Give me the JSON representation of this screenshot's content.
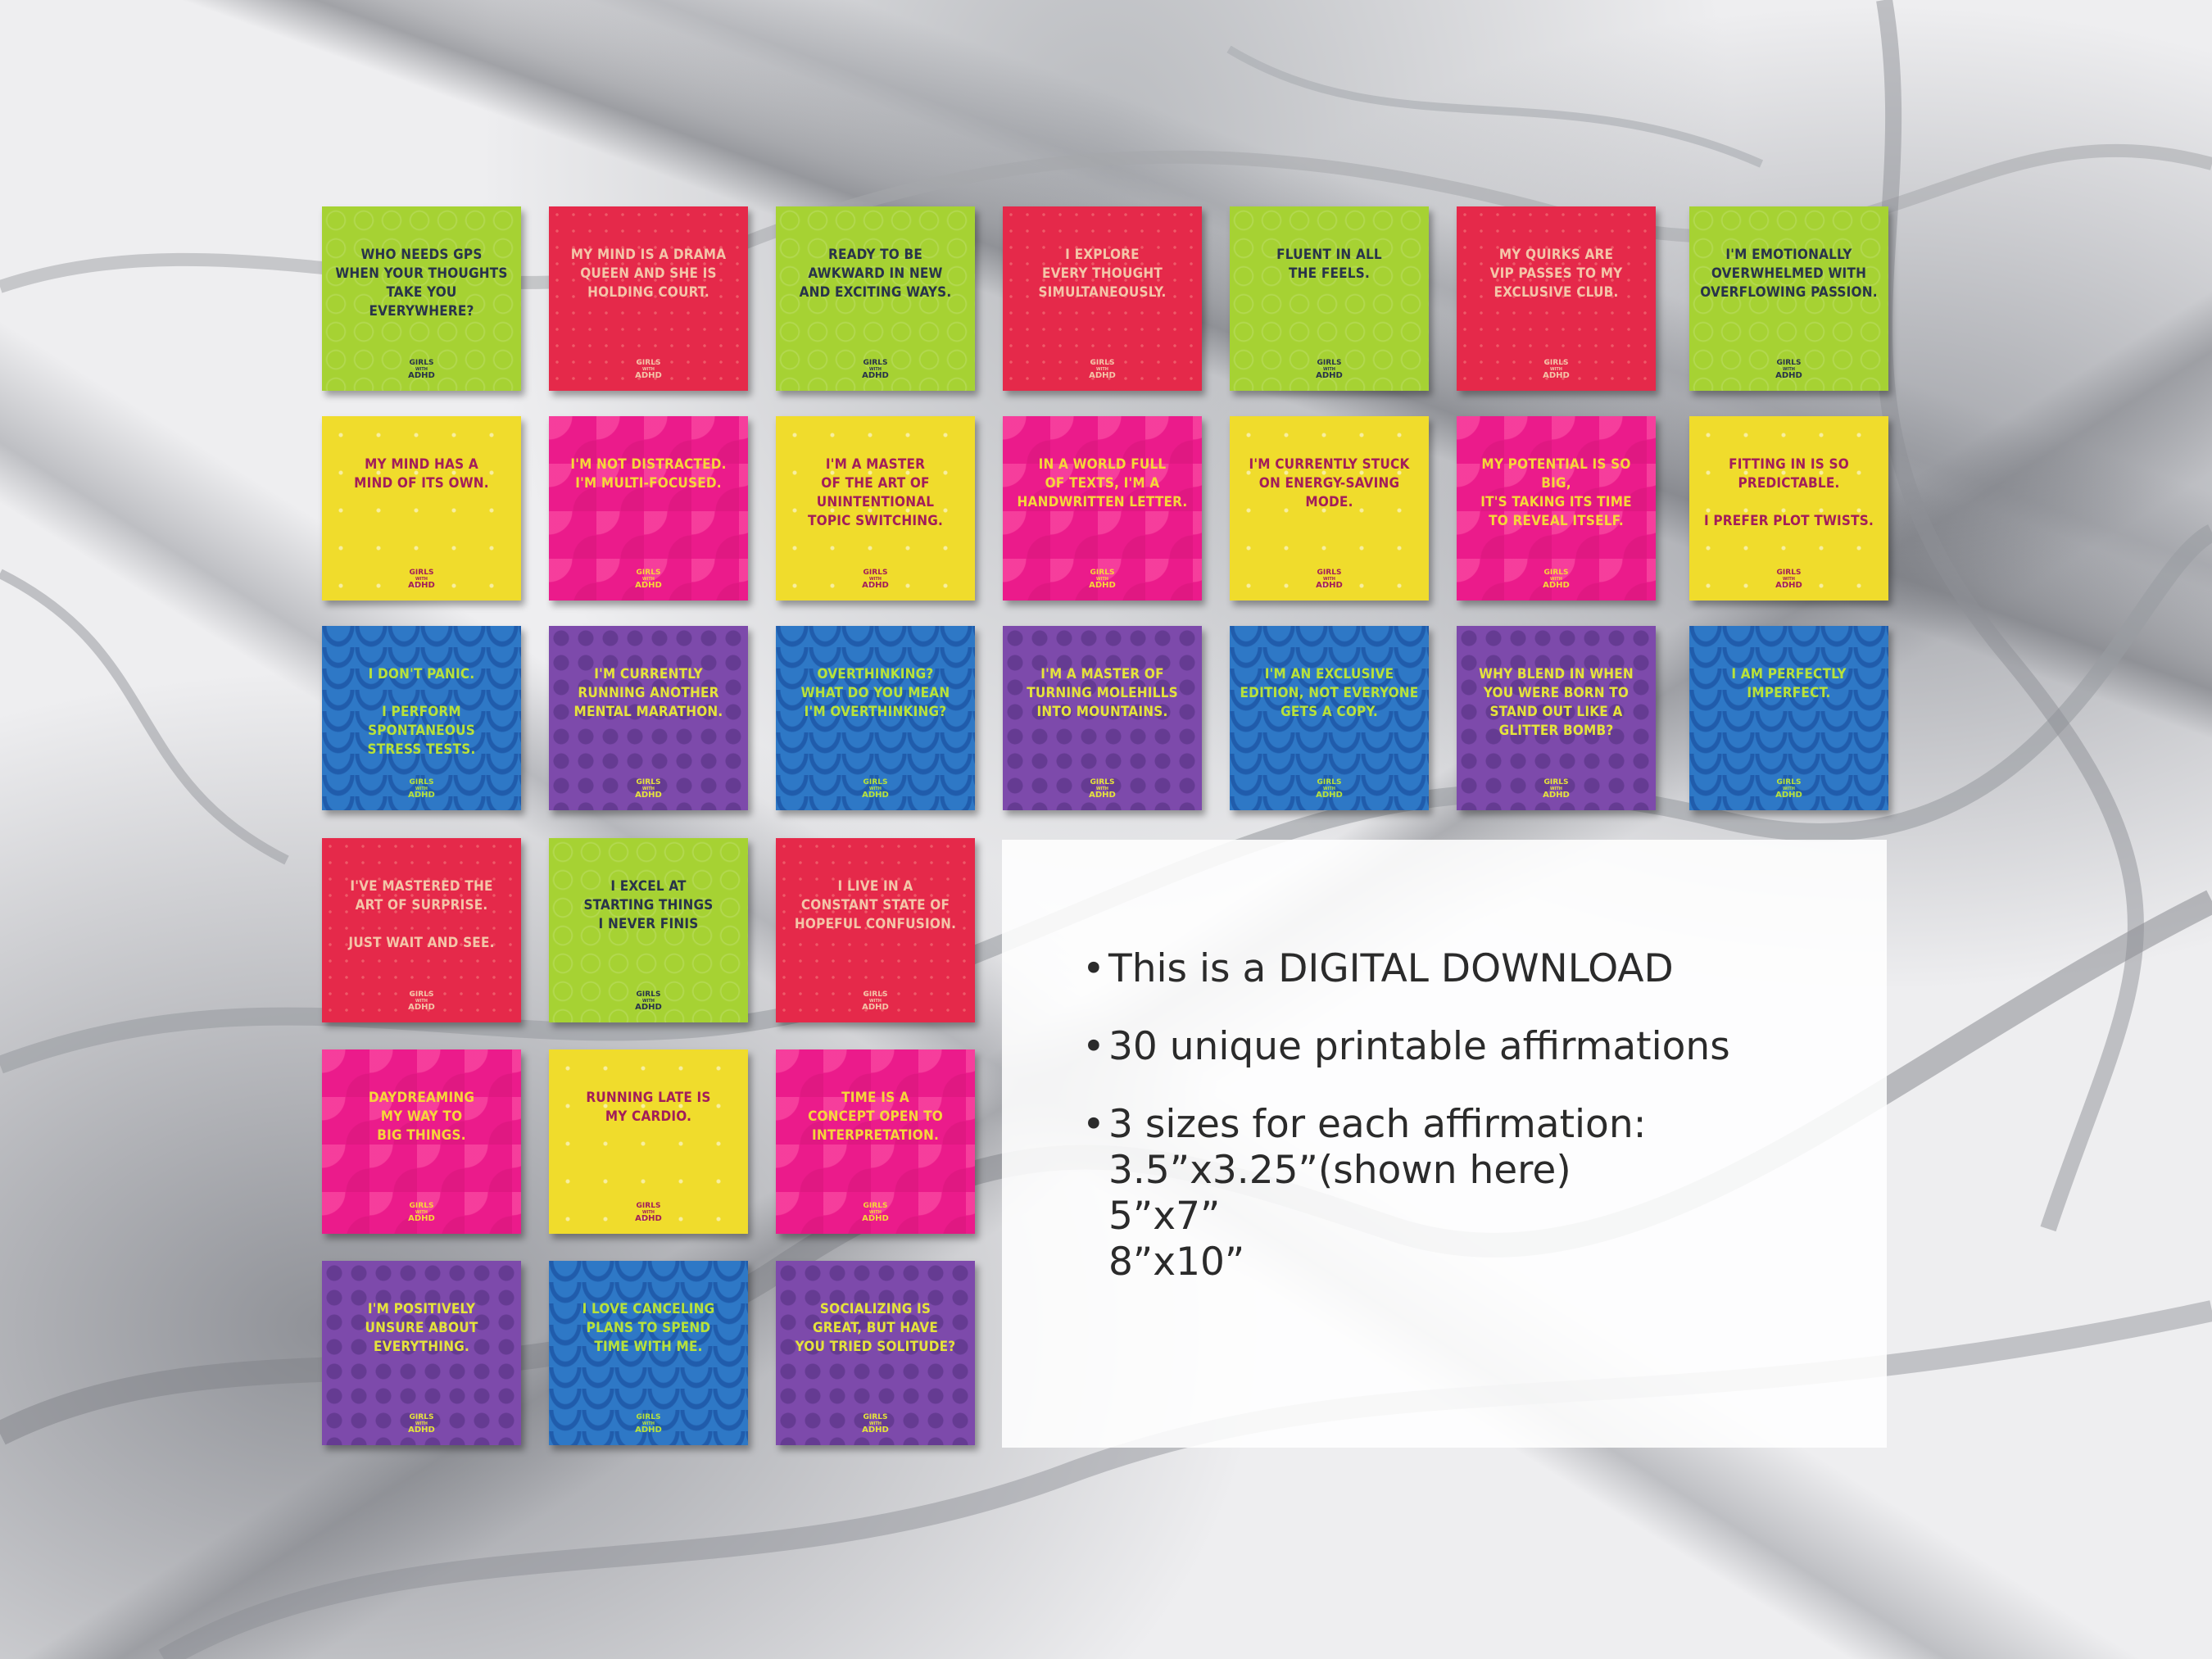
{
  "cards": [
    {
      "text": "Who needs GPS\nwhen your thoughts\ntake you everywhere?",
      "theme": "green"
    },
    {
      "text": "My mind is a drama\nqueen and she is\nholding court.",
      "theme": "red"
    },
    {
      "text": "Ready to be\nawkward in new\nand exciting ways.",
      "theme": "green"
    },
    {
      "text": "I explore\nevery thought\nsimultaneously.",
      "theme": "red"
    },
    {
      "text": "Fluent in all\nthe feels.",
      "theme": "green"
    },
    {
      "text": "My quirks are\nVIP passes to my\nexclusive club.",
      "theme": "red"
    },
    {
      "text": "I'm emotionally\noverwhelmed with\noverflowing passion.",
      "theme": "green"
    },
    {
      "text": "My mind has a\nmind of its own.",
      "theme": "yellow"
    },
    {
      "text": "I'm not distracted.\nI'm multi-focused.",
      "theme": "pink"
    },
    {
      "text": "I'm a master\nof the art of\nunintentional\ntopic switching.",
      "theme": "yellow"
    },
    {
      "text": "In a world full\nof texts, I'm a\nhandwritten letter.",
      "theme": "pink"
    },
    {
      "text": "I'm currently stuck\non energy-saving mode.",
      "theme": "yellow"
    },
    {
      "text": "My potential is so big,\nit's taking its time\nto reveal itself.",
      "theme": "pink"
    },
    {
      "text": "Fitting in is so\npredictable.\n\nI prefer plot twists.",
      "theme": "yellow"
    },
    {
      "text": "I don't panic.\n\nI perform spontaneous\nstress tests.",
      "theme": "blue"
    },
    {
      "text": "I'm currently\nrunning another\nmental marathon.",
      "theme": "purple"
    },
    {
      "text": "Overthinking?\nWhat do you mean\nI'm overthinking?",
      "theme": "blue"
    },
    {
      "text": "I'm a master of\nturning molehills\ninto mountains.",
      "theme": "purple"
    },
    {
      "text": "I'm an exclusive\nedition, not everyone\ngets a copy.",
      "theme": "blue"
    },
    {
      "text": "Why blend in when\nyou were born to\nstand out like a\nglitter bomb?",
      "theme": "purple"
    },
    {
      "text": "I am perfectly\nimperfect.",
      "theme": "blue"
    },
    {
      "text": "I've mastered the\nart of surprise.\n\nJust wait and see.",
      "theme": "red"
    },
    {
      "text": "I excel at\nstarting things\nI never finis",
      "theme": "green"
    },
    {
      "text": "I live in a\nconstant state of\nhopeful confusion.",
      "theme": "red"
    },
    {
      "text": "Daydreaming\nmy way to\nbig things.",
      "theme": "pink"
    },
    {
      "text": "Running late is\nmy cardio.",
      "theme": "yellow"
    },
    {
      "text": "Time is a\nconcept open to\ninterpretation.",
      "theme": "pink"
    },
    {
      "text": "I'm positively\nunsure about\neverything.",
      "theme": "purple"
    },
    {
      "text": "I love canceling\nplans to spend\ntime with me.",
      "theme": "blue"
    },
    {
      "text": "Socializing is\ngreat, but have\nyou tried solitude?",
      "theme": "purple"
    }
  ],
  "logo": {
    "line1": "GIRLS",
    "line2": "WITH",
    "line3": "ADHD"
  },
  "info": {
    "item1": "This is a DIGITAL DOWNLOAD",
    "item2": "30 unique printable affirmations",
    "item3": "3 sizes for each affirmation:",
    "sizes": [
      "3.5”x3.25”(shown here)",
      "5”x7”",
      "8”x10”"
    ],
    "bullet": "•"
  },
  "theme_colors": {
    "green": "#a6d233",
    "red": "#e5294a",
    "yellow": "#f0dc2c",
    "pink": "#eb1b8b",
    "blue": "#2e78c6",
    "purple": "#7d4aab"
  }
}
